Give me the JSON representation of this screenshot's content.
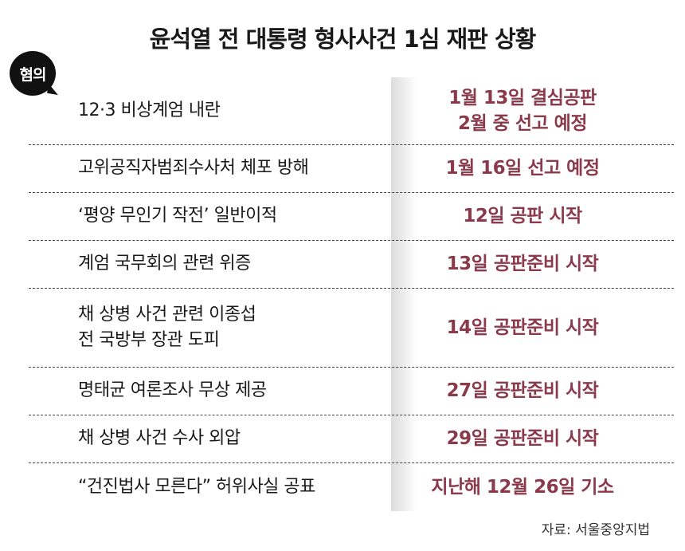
{
  "title": "윤석열 전 대통령 형사사건 1심 재판 상황",
  "badge": "혐의",
  "accent_color": "#8a3a4a",
  "rows": [
    {
      "charge": [
        "12·3 비상계엄 내란"
      ],
      "status": [
        "1월 13일 결심공판",
        "2월 중 선고 예정"
      ]
    },
    {
      "charge": [
        "고위공직자범죄수사처 체포 방해"
      ],
      "status": [
        "1월 16일 선고 예정"
      ]
    },
    {
      "charge": [
        "‘평양 무인기 작전’ 일반이적"
      ],
      "status": [
        "12일 공판 시작"
      ]
    },
    {
      "charge": [
        "계엄 국무회의 관련 위증"
      ],
      "status": [
        "13일 공판준비 시작"
      ]
    },
    {
      "charge": [
        "채 상병 사건 관련 이종섭",
        "전 국방부 장관 도피"
      ],
      "status": [
        "14일 공판준비 시작"
      ]
    },
    {
      "charge": [
        "명태균 여론조사 무상 제공"
      ],
      "status": [
        "27일 공판준비 시작"
      ]
    },
    {
      "charge": [
        "채 상병 사건 수사 외압"
      ],
      "status": [
        "29일 공판준비 시작"
      ]
    },
    {
      "charge": [
        "“건진법사 모른다” 허위사실 공표"
      ],
      "status": [
        "지난해 12월 26일 기소"
      ]
    }
  ],
  "source": "자료: 서울중앙지법"
}
